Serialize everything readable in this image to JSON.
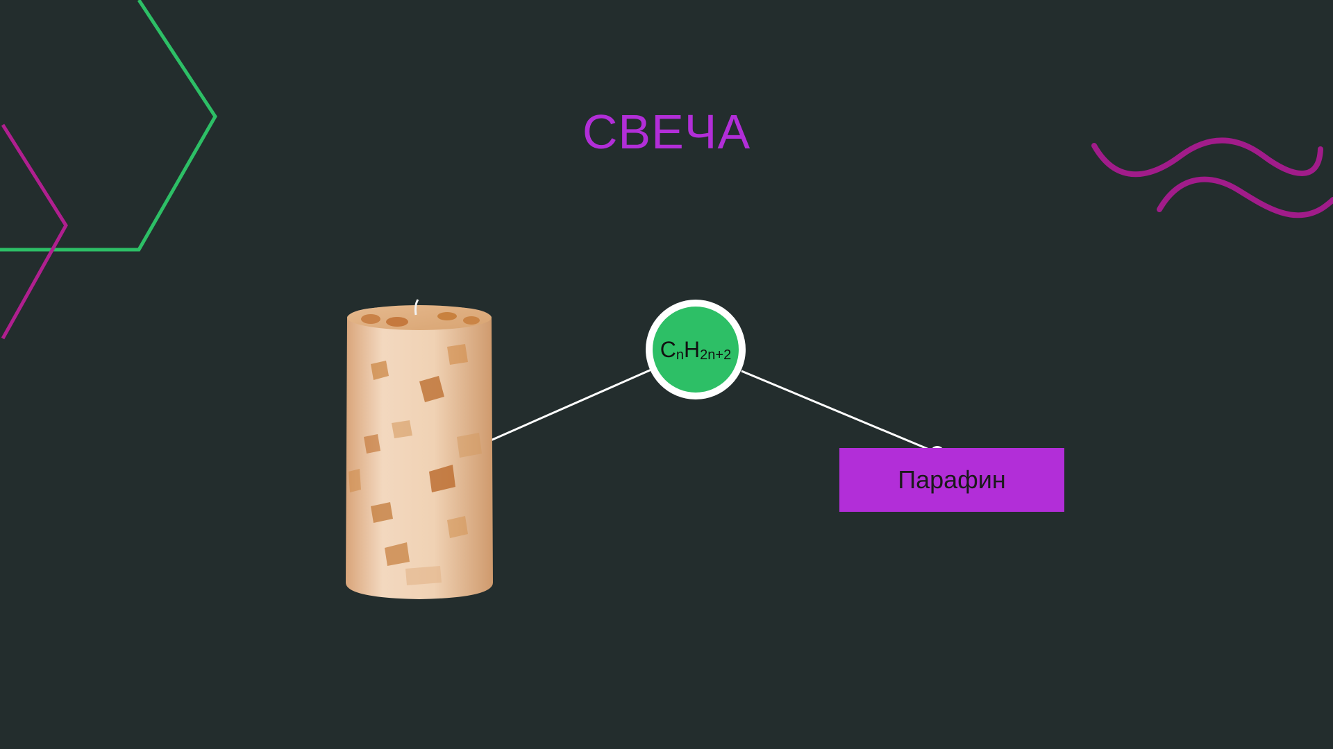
{
  "slide": {
    "title": "СВЕЧА",
    "formula": {
      "c": "C",
      "n": "n",
      "h": "H",
      "sub": "2n+2"
    },
    "label": "Парафин"
  },
  "colors": {
    "background": "#232d2d",
    "accent_purple": "#b22ed8",
    "accent_green": "#2dbf66",
    "connector": "#ffffff"
  },
  "icons": {
    "candle": "candle-illustration",
    "hexagon": "hexagon-outline-decoration",
    "waves": "wave-lines-decoration"
  }
}
